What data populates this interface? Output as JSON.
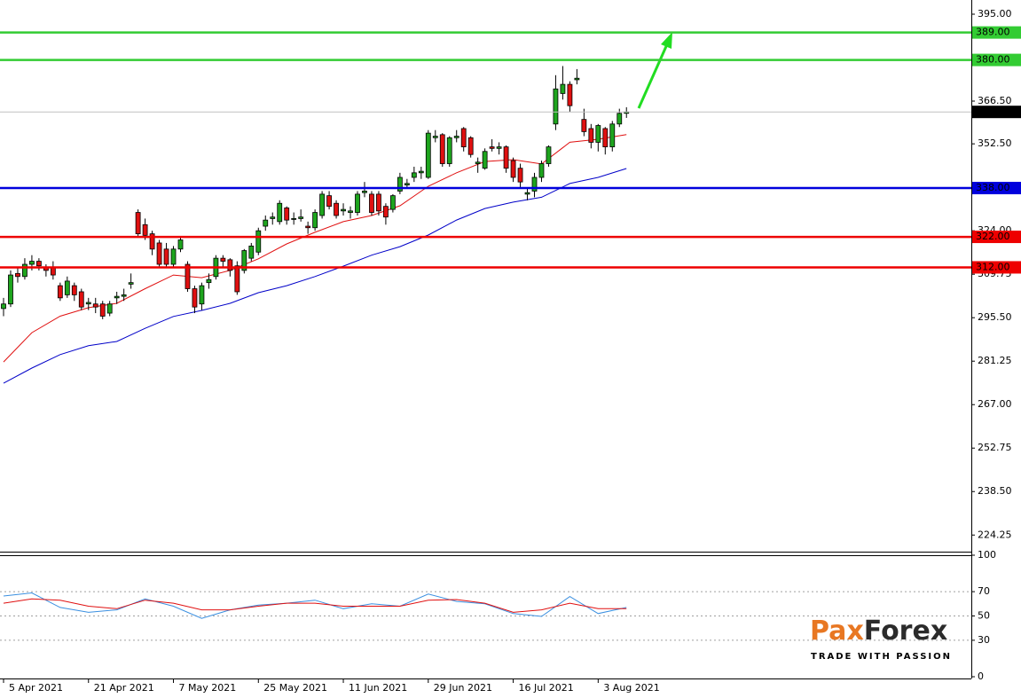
{
  "chart_data": [
    {
      "type": "candlestick",
      "categories": [
        "5 Apr 2021",
        null,
        null,
        null,
        null,
        null,
        null,
        null,
        null,
        null,
        null,
        null,
        "21 Apr 2021",
        null,
        null,
        null,
        null,
        null,
        null,
        null,
        null,
        null,
        null,
        null,
        "7 May 2021",
        null,
        null,
        null,
        null,
        null,
        null,
        null,
        null,
        null,
        null,
        null,
        "25 May 2021",
        null,
        null,
        null,
        null,
        null,
        null,
        null,
        null,
        null,
        null,
        null,
        "11 Jun 2021",
        null,
        null,
        null,
        null,
        null,
        null,
        null,
        null,
        null,
        null,
        null,
        "29 Jun 2021",
        null,
        null,
        null,
        null,
        null,
        null,
        null,
        null,
        null,
        null,
        null,
        "16 Jul 2021",
        null,
        null,
        null,
        null,
        null,
        null,
        null,
        null,
        null,
        null,
        null,
        "3 Aug 2021",
        null,
        null,
        null,
        null
      ],
      "open": [
        298.5,
        300,
        310,
        309,
        313,
        314,
        312,
        312,
        306,
        303,
        306,
        304,
        300,
        300,
        300,
        297,
        302,
        302.5,
        306.5,
        330,
        326,
        323,
        320,
        318,
        313,
        318,
        313,
        305,
        300,
        307,
        309,
        315,
        314.5,
        312.5,
        311,
        315,
        317,
        325.5,
        328,
        327,
        331.5,
        328,
        328,
        325.5,
        325,
        329,
        335.5,
        333,
        330.5,
        330,
        330,
        336.5,
        336,
        336,
        332,
        331,
        337,
        339,
        341.5,
        343,
        341.5,
        354.5,
        355.5,
        346,
        354.5,
        357.5,
        354.5,
        346,
        344.5,
        351.5,
        351,
        351.5,
        347,
        344.5,
        336,
        337,
        341.5,
        346,
        359,
        369,
        372,
        373.5,
        360.5,
        357.5,
        353,
        357.5,
        351.5,
        359,
        362.5
      ],
      "high": [
        302,
        311,
        312,
        315,
        316,
        315,
        313,
        314,
        307,
        309,
        307,
        305,
        302,
        302,
        301,
        301,
        304,
        305,
        310,
        331,
        328,
        324,
        321,
        320,
        319,
        322,
        314,
        306,
        307,
        310,
        316,
        316,
        315,
        314,
        318,
        320,
        325,
        329,
        330,
        334,
        332,
        330,
        331,
        327,
        331,
        337,
        337,
        334,
        333,
        332,
        337,
        340,
        337,
        337,
        333,
        336,
        343,
        341,
        345,
        345,
        357,
        357,
        356,
        355,
        357,
        358,
        355,
        348,
        351,
        354,
        353,
        352,
        348,
        346,
        338,
        343,
        347,
        352,
        375,
        378,
        373,
        377,
        364,
        359,
        359,
        358,
        360,
        364,
        364.5
      ],
      "low": [
        296,
        299,
        307,
        308,
        311,
        311,
        309,
        308,
        301,
        302,
        301,
        298,
        298,
        297,
        295,
        296,
        300,
        301,
        305,
        322,
        321,
        316,
        312,
        312,
        312,
        317,
        304,
        297,
        298,
        305,
        308,
        312,
        309,
        303,
        310,
        314,
        316,
        324,
        326,
        326,
        326,
        326,
        327,
        323,
        324,
        328,
        331,
        328,
        329,
        328,
        329,
        335,
        329,
        329,
        326,
        330,
        336,
        338,
        340,
        341,
        341,
        353,
        345,
        345,
        353,
        350,
        348,
        343,
        344,
        350,
        349,
        343,
        340,
        338,
        334,
        335,
        340,
        345,
        357,
        367,
        363,
        372,
        355,
        351,
        350,
        349,
        350,
        358,
        361
      ],
      "close": [
        300,
        309.5,
        309,
        313,
        314,
        312.5,
        311,
        309.5,
        302,
        307.5,
        303,
        299,
        300.5,
        299,
        296,
        300,
        302.5,
        303,
        307,
        323,
        322.5,
        318,
        313,
        313,
        318,
        321,
        305,
        299,
        306,
        308,
        315,
        314,
        311,
        304,
        317.5,
        319,
        324,
        327.5,
        328.5,
        333,
        327.5,
        328,
        328.5,
        325,
        330,
        336,
        332,
        329,
        331,
        330.5,
        336,
        337,
        330,
        330.5,
        328.5,
        335.5,
        341.5,
        339.5,
        343,
        343.5,
        356,
        355,
        346,
        354.5,
        355,
        351.5,
        349,
        346.5,
        350,
        351,
        351.5,
        344.5,
        341.5,
        340,
        336.5,
        341.5,
        346,
        351.5,
        370.5,
        372,
        365,
        374,
        356.5,
        353,
        358.5,
        351.5,
        359,
        362.5,
        362.96
      ],
      "up_color": "#1ea51e",
      "down_color": "#e01010",
      "lines": [
        {
          "color": "#e01010",
          "x": [
            0,
            4,
            8,
            12,
            16,
            20,
            24,
            28,
            32,
            36,
            40,
            44,
            48,
            52,
            56,
            60,
            64,
            68,
            72,
            76,
            80,
            84,
            88
          ],
          "values": [
            281,
            290.6,
            296,
            298.8,
            300.2,
            305,
            309.5,
            308.6,
            311,
            314.8,
            319.7,
            323.5,
            327,
            329,
            332.2,
            338.6,
            343,
            346.7,
            347.3,
            345.9,
            353,
            354,
            355.5
          ]
        },
        {
          "color": "#0000c8",
          "x": [
            0,
            4,
            8,
            12,
            16,
            20,
            24,
            28,
            32,
            36,
            40,
            44,
            48,
            52,
            56,
            60,
            64,
            68,
            72,
            76,
            80,
            84,
            88
          ],
          "values": [
            274,
            279,
            283.4,
            286.3,
            287.7,
            292,
            295.9,
            297.9,
            300.2,
            303.7,
            306,
            309,
            312.4,
            316,
            318.8,
            322.6,
            327.5,
            331.3,
            333.4,
            335,
            339.5,
            341.5,
            344.4
          ]
        }
      ],
      "levels": [
        {
          "value": 389,
          "label": "389.00",
          "color": "#33cc33"
        },
        {
          "value": 380,
          "label": "380.00",
          "color": "#33cc33"
        },
        {
          "value": 362.96,
          "label": "362.96",
          "color": "#c0c0c0"
        },
        {
          "value": 338,
          "label": "338.00",
          "color": "#0000dd"
        },
        {
          "value": 322,
          "label": "322.00",
          "color": "#ee0000"
        },
        {
          "value": 312,
          "label": "312.00",
          "color": "#ee0000"
        }
      ],
      "ylim": [
        218.8,
        399.65
      ],
      "yticks": [
        {
          "value": 395,
          "label": "395.00"
        },
        {
          "value": 366.5,
          "label": "366.50"
        },
        {
          "value": 352.5,
          "label": "352.50"
        },
        {
          "value": 324,
          "label": "324.00"
        },
        {
          "value": 309.75,
          "label": "309.75"
        },
        {
          "value": 295.5,
          "label": "295.50"
        },
        {
          "value": 281.25,
          "label": "281.25"
        },
        {
          "value": 267,
          "label": "267.00"
        },
        {
          "value": 252.75,
          "label": "252.75"
        },
        {
          "value": 238.5,
          "label": "238.50"
        },
        {
          "value": 224.25,
          "label": "224.25"
        }
      ]
    },
    {
      "type": "line",
      "series": [
        {
          "color": "#3a8fe0",
          "x": [
            0,
            4,
            8,
            12,
            16,
            20,
            24,
            28,
            32,
            36,
            40,
            44,
            48,
            52,
            56,
            60,
            64,
            68,
            72,
            76,
            80,
            84,
            88
          ],
          "values": [
            66.4,
            69,
            57,
            53,
            55,
            64,
            58,
            48,
            55,
            59,
            60.5,
            63,
            56,
            60,
            58,
            68,
            62,
            60,
            52,
            49.6,
            66,
            52,
            57
          ]
        },
        {
          "color": "#e01010",
          "x": [
            0,
            4,
            8,
            12,
            16,
            20,
            24,
            28,
            32,
            36,
            40,
            44,
            48,
            52,
            56,
            60,
            64,
            68,
            72,
            76,
            80,
            84,
            88
          ],
          "values": [
            60.5,
            64,
            63,
            58,
            56,
            63,
            60.5,
            55,
            55,
            58,
            60.5,
            60.5,
            58,
            58,
            58,
            63,
            63.5,
            60.5,
            53,
            55,
            60.5,
            56,
            56
          ]
        }
      ],
      "ylim": [
        0,
        100
      ],
      "yticks": [
        100,
        70,
        50,
        30,
        0
      ],
      "grid": true
    }
  ],
  "logo": {
    "parts": [
      "Pa",
      "x",
      "Forex"
    ],
    "tagline": "TRADE WITH PASSION"
  }
}
